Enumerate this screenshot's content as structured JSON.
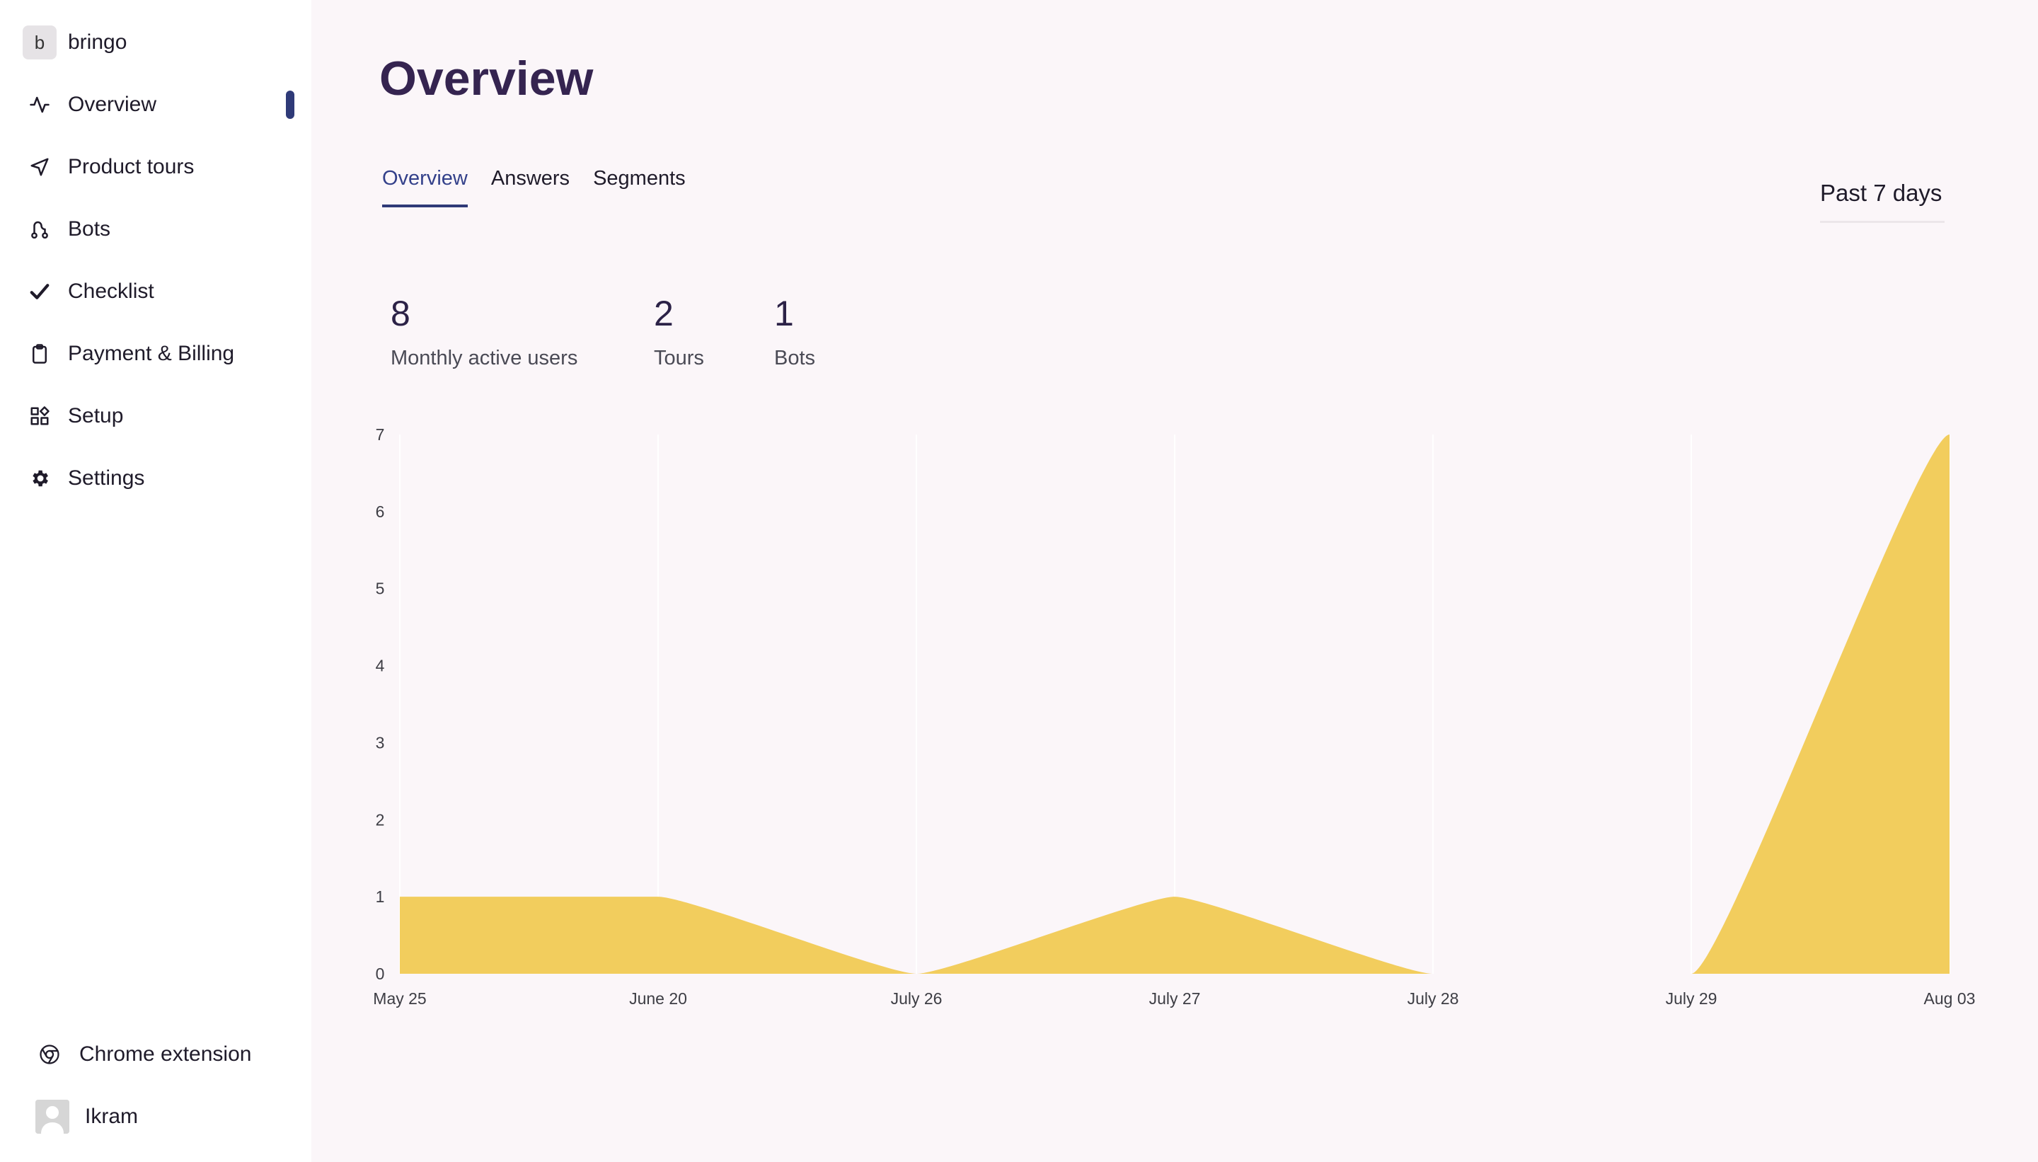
{
  "workspace": {
    "initial": "b",
    "name": "bringo"
  },
  "nav": [
    {
      "label": "Overview",
      "icon": "activity-icon",
      "active": true
    },
    {
      "label": "Product tours",
      "icon": "send-icon"
    },
    {
      "label": "Bots",
      "icon": "route-icon"
    },
    {
      "label": "Checklist",
      "icon": "checkmark-icon"
    },
    {
      "label": "Payment & Billing",
      "icon": "clipboard-icon"
    },
    {
      "label": "Setup",
      "icon": "widgets-icon"
    },
    {
      "label": "Settings",
      "icon": "gear-icon"
    }
  ],
  "footer": {
    "extension_label": "Chrome extension",
    "user_name": "Ikram"
  },
  "page": {
    "title": "Overview"
  },
  "tabs": [
    {
      "label": "Overview",
      "active": true
    },
    {
      "label": "Answers"
    },
    {
      "label": "Segments"
    }
  ],
  "date_range": "Past 7 days",
  "stats": [
    {
      "value": "8",
      "label": "Monthly active users"
    },
    {
      "value": "2",
      "label": "Tours"
    },
    {
      "value": "1",
      "label": "Bots"
    }
  ],
  "colors": {
    "accent": "#2f3a78",
    "area": "#f2cd5d",
    "title": "#352450"
  },
  "chart_data": {
    "type": "area",
    "categories": [
      "May 25",
      "June 20",
      "July 26",
      "July 27",
      "July 28",
      "July 29",
      "Aug 03"
    ],
    "values": [
      1,
      1,
      0,
      1,
      0,
      0,
      7
    ],
    "ylim": [
      0,
      7
    ],
    "yticks": [
      0,
      1,
      2,
      3,
      4,
      5,
      6,
      7
    ],
    "grid": "vertical",
    "color": "#f2cd5d"
  }
}
